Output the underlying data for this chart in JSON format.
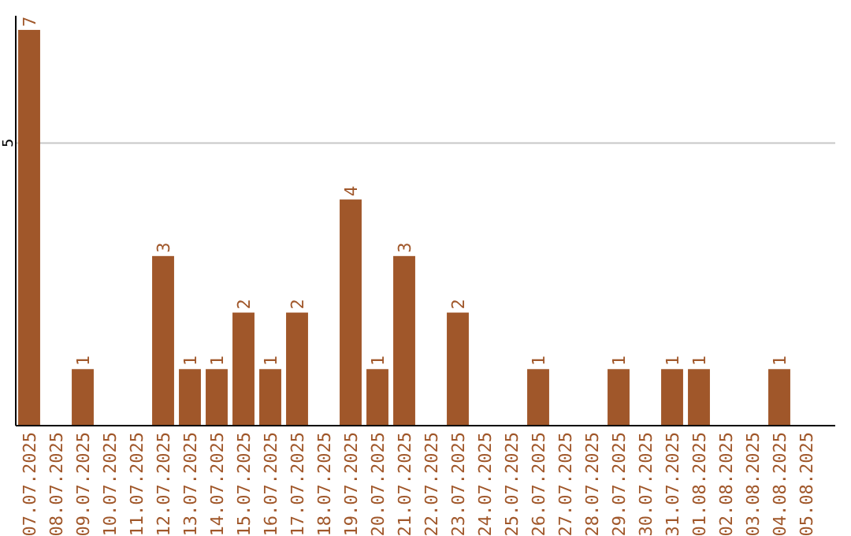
{
  "chart_data": {
    "type": "bar",
    "categories": [
      "07.07.2025",
      "08.07.2025",
      "09.07.2025",
      "10.07.2025",
      "11.07.2025",
      "12.07.2025",
      "13.07.2025",
      "14.07.2025",
      "15.07.2025",
      "16.07.2025",
      "17.07.2025",
      "18.07.2025",
      "19.07.2025",
      "20.07.2025",
      "21.07.2025",
      "22.07.2025",
      "23.07.2025",
      "24.07.2025",
      "25.07.2025",
      "26.07.2025",
      "27.07.2025",
      "28.07.2025",
      "29.07.2025",
      "30.07.2025",
      "31.07.2025",
      "01.08.2025",
      "02.08.2025",
      "03.08.2025",
      "04.08.2025",
      "05.08.2025"
    ],
    "values": [
      7,
      0,
      1,
      0,
      0,
      3,
      1,
      1,
      2,
      1,
      2,
      0,
      4,
      1,
      3,
      0,
      2,
      0,
      0,
      1,
      0,
      0,
      1,
      0,
      1,
      1,
      0,
      0,
      1,
      0
    ],
    "value_labels": [
      "7",
      null,
      "1",
      null,
      null,
      "3",
      "1",
      "1",
      "2",
      "1",
      "2",
      null,
      "4",
      "1",
      "3",
      null,
      "2",
      null,
      null,
      "1",
      null,
      null,
      "1",
      null,
      "1",
      "1",
      null,
      null,
      "1",
      null
    ],
    "color": "#a0572a",
    "ylim": [
      0,
      7.25
    ],
    "yticks": [
      5
    ],
    "grid": "y"
  }
}
